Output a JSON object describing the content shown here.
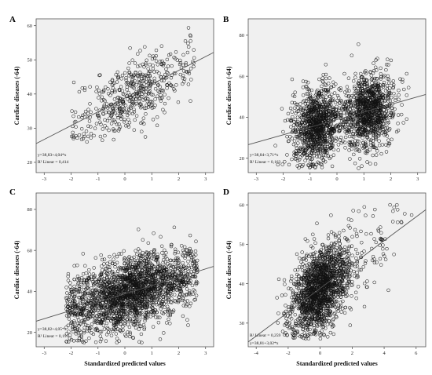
{
  "chart_data": [
    {
      "type": "scatter",
      "panel": "A",
      "ylabel": "Cardiac diseases (-64)",
      "xlabel": "",
      "xlim": [
        -3.3,
        3.3
      ],
      "ylim": [
        17,
        62
      ],
      "xticks": [
        -3,
        -2,
        -1,
        0,
        1,
        2,
        3
      ],
      "yticks": [
        20,
        30,
        40,
        50,
        60
      ],
      "fit": {
        "intercept": 38.83,
        "slope": 4.04
      },
      "equation": "y=38,83+4,04*x",
      "r2": "R² Linear = 0,414",
      "points": {
        "n": 500,
        "x_range": [
          -2.0,
          2.6
        ],
        "y_sd": 5.0,
        "y_min": 26,
        "y_max": 60
      }
    },
    {
      "type": "scatter",
      "panel": "B",
      "ylabel": "Cardiac diseases (-64)",
      "xlabel": "",
      "xlim": [
        -3.3,
        3.3
      ],
      "ylim": [
        13,
        88
      ],
      "xticks": [
        -3,
        -2,
        -1,
        0,
        1,
        2,
        3
      ],
      "yticks": [
        20,
        40,
        60,
        80
      ],
      "fit": {
        "intercept": 38.84,
        "slope": 3.71
      },
      "equation": "y=38,84+3,71*x",
      "r2": "R² Linear = 0,163",
      "points": {
        "n": 2200,
        "clusters": [
          [
            -0.75,
            0.45
          ],
          [
            1.2,
            0.45
          ]
        ],
        "y_sd": 9.0,
        "y_min": 15,
        "y_max": 84
      }
    },
    {
      "type": "scatter",
      "panel": "C",
      "ylabel": "Cardiac diseases (-64)",
      "xlabel": "Standardized predicted values",
      "xlim": [
        -3.3,
        3.3
      ],
      "ylim": [
        13,
        88
      ],
      "xticks": [
        -3,
        -2,
        -1,
        0,
        1,
        2,
        3
      ],
      "yticks": [
        20,
        40,
        60,
        80
      ],
      "fit": {
        "intercept": 38.82,
        "slope": 4.05
      },
      "equation": "y=38,82+4,05*x",
      "r2": "R² Linear = 0,195",
      "points": {
        "n": 2300,
        "x_range": [
          -2.2,
          2.7
        ],
        "y_sd": 8.5,
        "y_min": 15,
        "y_max": 84
      }
    },
    {
      "type": "scatter",
      "panel": "D",
      "ylabel": "Cardiac diseases (-64)",
      "xlabel": "Standardized predicted values",
      "xlim": [
        -4.5,
        6.6
      ],
      "ylim": [
        24,
        63
      ],
      "xticks": [
        -4,
        -2,
        0,
        2,
        4,
        6
      ],
      "yticks": [
        30,
        40,
        50,
        60
      ],
      "fit": {
        "intercept": 38.81,
        "slope": 3.02
      },
      "equation": "y=38,81+3,02*x",
      "r2": "R² Linear = 0,259",
      "points": {
        "n": 1800,
        "x_mean": 0.0,
        "x_sd": 0.9,
        "y_sd": 5.0,
        "y_min": 26,
        "y_max": 60
      }
    }
  ]
}
